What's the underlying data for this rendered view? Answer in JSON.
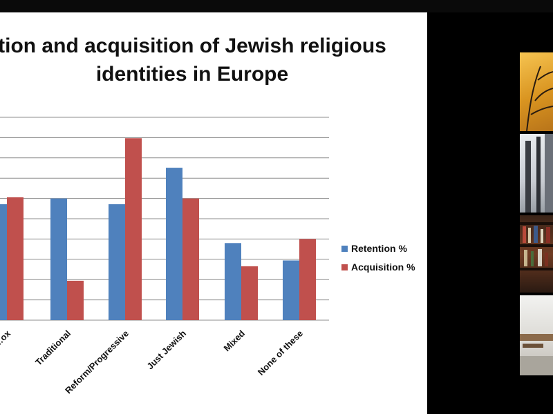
{
  "slide": {
    "title_line1": "tion and acquisition of Jewish religious",
    "title_line2": "identities in Europe"
  },
  "chart_data": {
    "type": "bar",
    "title": "tion and acquisition of Jewish religious identities in Europe",
    "categories": [
      "…ox",
      "Traditional",
      "Reform/Progressive",
      "Just Jewish",
      "Mixed",
      "None of these"
    ],
    "series": [
      {
        "name": "Retention %",
        "color": "#4f81bd",
        "values": [
          20,
          21,
          20,
          26.3,
          13.3,
          10.3
        ]
      },
      {
        "name": "Acquisition %",
        "color": "#c0504d",
        "values": [
          21.2,
          6.8,
          31.4,
          21,
          9.3,
          14
        ]
      }
    ],
    "ylim": [
      0,
      35
    ],
    "grid": true,
    "legend_position": "right"
  },
  "video_tiles": [
    {
      "name": "participant-1",
      "color": "#e0a030"
    },
    {
      "name": "participant-2",
      "color": "#c8ccd2"
    },
    {
      "name": "participant-3",
      "color": "#5a3320"
    },
    {
      "name": "participant-4",
      "color": "#dcdad5"
    }
  ]
}
